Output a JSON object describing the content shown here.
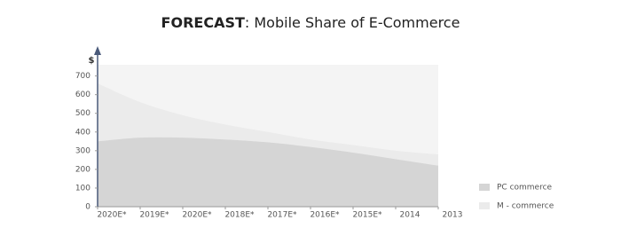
{
  "chart_data": {
    "type": "stacked-area",
    "title_parts": [
      "FORECAST",
      ": Mobile Share of E-Commerce"
    ],
    "y_label": "$",
    "categories": [
      "2020E*",
      "2019E*",
      "2020E*",
      "2018E*",
      "2017E*",
      "2016E*",
      "2015E*",
      "2014",
      "2013"
    ],
    "series": [
      {
        "name": "PC commerce",
        "color": "#d5d5d5",
        "values": [
          350,
          370,
          370,
          360,
          345,
          320,
          290,
          255,
          220
        ]
      },
      {
        "name": "M - commerce",
        "color": "#ebebeb",
        "values": [
          310,
          190,
          120,
          80,
          55,
          40,
          40,
          45,
          60
        ]
      }
    ],
    "ylim": [
      0,
      760
    ],
    "yticks": [
      0,
      100,
      200,
      300,
      400,
      500,
      600,
      700
    ],
    "legend": "bottom-right"
  }
}
